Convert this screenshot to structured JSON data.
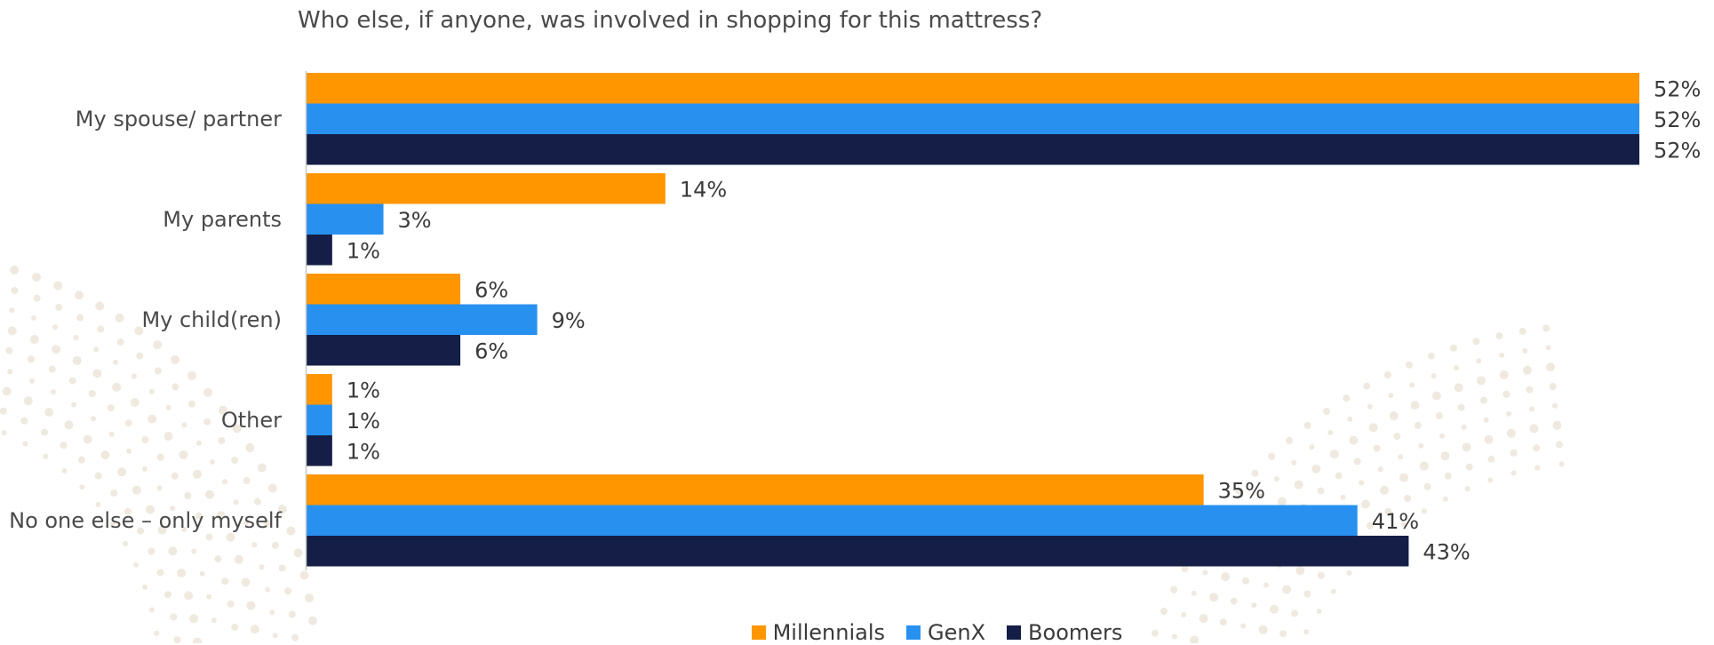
{
  "colors": {
    "millennials": "#FF9600",
    "genx": "#2891F0",
    "boomers": "#141E46",
    "axis": "#c8c8c8"
  },
  "chart_data": {
    "type": "bar",
    "orientation": "horizontal",
    "title": "Who else, if anyone, was involved in shopping for this mattress?",
    "categories": [
      "My spouse/ partner",
      "My parents",
      "My child(ren)",
      "Other",
      "No one else – only myself"
    ],
    "series": [
      {
        "name": "Millennials",
        "values": [
          52,
          14,
          6,
          1,
          35
        ],
        "labels": [
          "52%",
          "14%",
          "6%",
          "1%",
          "35%"
        ]
      },
      {
        "name": "GenX",
        "values": [
          52,
          3,
          9,
          1,
          41
        ],
        "labels": [
          "52%",
          "3%",
          "9%",
          "1%",
          "41%"
        ]
      },
      {
        "name": "Boomers",
        "values": [
          52,
          1,
          6,
          1,
          43
        ],
        "labels": [
          "52%",
          "1%",
          "6%",
          "1%",
          "43%"
        ]
      }
    ],
    "xlim": [
      0,
      52
    ],
    "legend_position": "bottom",
    "grid": false
  }
}
